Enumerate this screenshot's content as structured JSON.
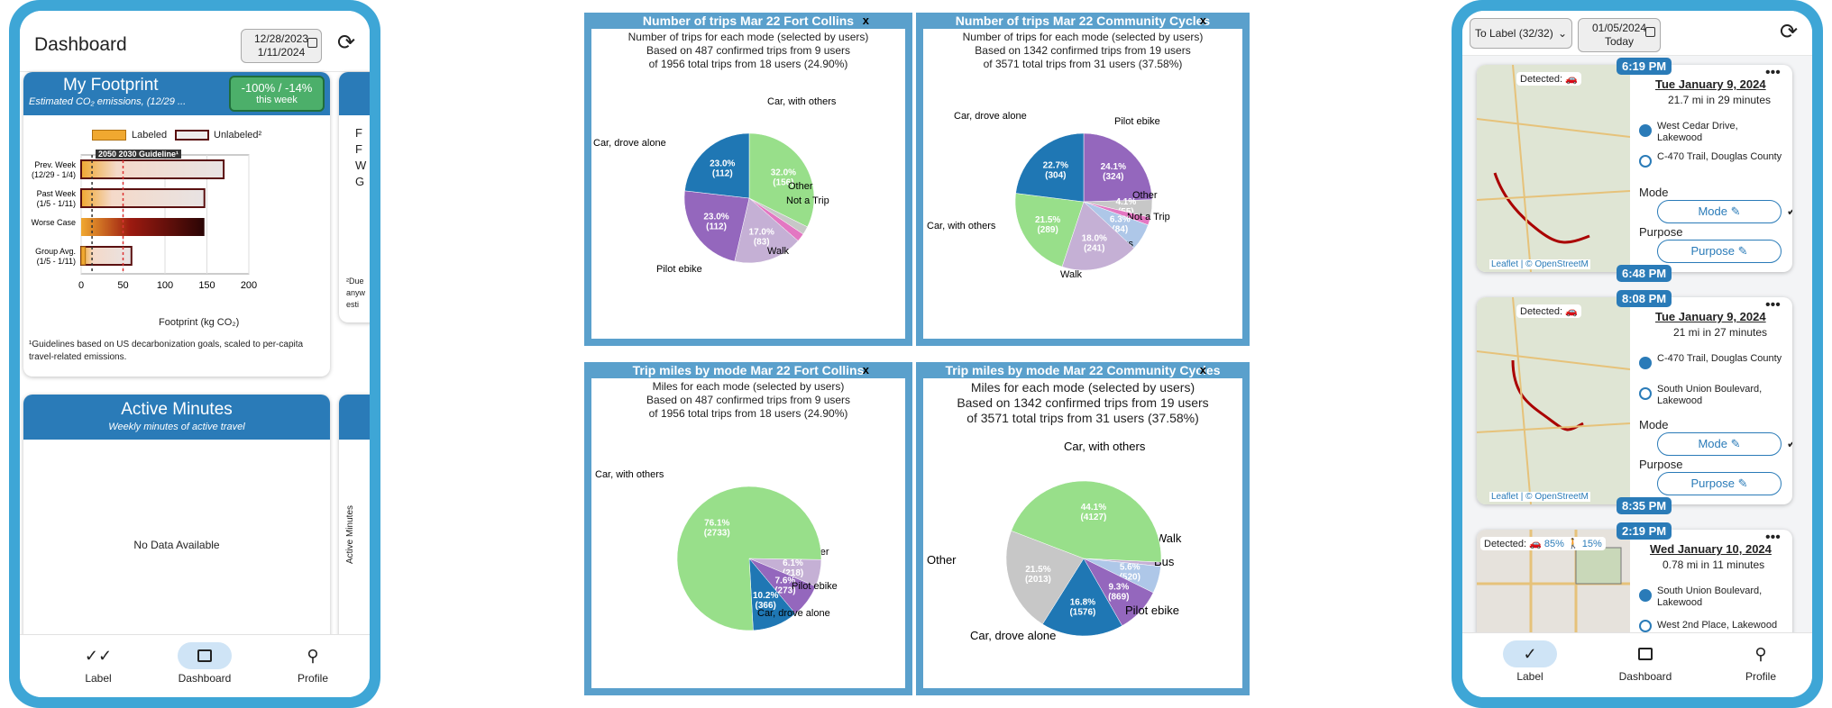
{
  "left_phone": {
    "header": {
      "title": "Dashboard",
      "date_start": "12/28/2023",
      "date_end": "1/11/2024"
    },
    "footprint": {
      "title": "My Footprint",
      "subtitle": "Estimated CO₂ emissions, (12/29 ...",
      "badge_value": "-100% / -14%",
      "badge_sub": "this week",
      "legend_labeled": "Labeled",
      "legend_unlabeled": "Unlabeled²",
      "guideline_label": "2050  2030 Guideline¹",
      "rows": [
        {
          "label1": "Prev. Week",
          "label2": "(12/29 - 1/4)",
          "labeled": 0,
          "unlabeled": 170
        },
        {
          "label1": "Past Week",
          "label2": "(1/5 - 1/11)",
          "labeled": 0,
          "unlabeled": 147
        },
        {
          "label1": "Worse Case",
          "label2": "",
          "labeled": 0,
          "unlabeled": 147
        },
        {
          "label1": "Group Avg.",
          "label2": "(1/5 - 1/11)",
          "labeled": 5,
          "unlabeled": 60
        }
      ],
      "x_ticks": [
        "0",
        "50",
        "100",
        "150",
        "200"
      ],
      "x_label": "Footprint (kg CO₂)",
      "footnote": "¹Guidelines based on US decarbonization goals, scaled to per-capita travel-related emissions.",
      "side_card_letters": [
        "F",
        "F",
        "W",
        "G"
      ],
      "side_card_note": "²Due anyw esti"
    },
    "active_minutes": {
      "title": "Active Minutes",
      "subtitle": "Weekly minutes of active travel",
      "empty": "No Data Available",
      "side_label": "Active Minutes"
    },
    "tabs": [
      {
        "label": "Label",
        "icon": "double-check-icon"
      },
      {
        "label": "Dashboard",
        "icon": "bar-chart-icon"
      },
      {
        "label": "Profile",
        "icon": "person-icon"
      }
    ]
  },
  "panels": [
    {
      "title": "Number of trips Mar 22 Fort Collins",
      "close": "x",
      "sub1": "Number of trips for each mode (selected by users)",
      "sub2": "Based on 487 confirmed trips from 9 users",
      "sub3": "of 1956 total trips from 18 users (24.90%)"
    },
    {
      "title": "Number of trips Mar 22 Community Cycles",
      "close": "x",
      "sub1": "Number of trips for each mode (selected by users)",
      "sub2": "Based on 1342 confirmed trips from 19 users",
      "sub3": "of 3571 total trips from 31 users (37.58%)"
    },
    {
      "title": "Trip miles by mode Mar 22 Fort Collins",
      "close": "x",
      "sub1": "Miles for each mode (selected by users)",
      "sub2": "Based on 487 confirmed trips from 9 users",
      "sub3": "of 1956 total trips from 18 users (24.90%)"
    },
    {
      "title": "Trip miles by mode Mar 22 Community Cycles",
      "close": "x",
      "sub1": "Miles for each mode (selected by users)",
      "sub2": "Based on 1342 confirmed trips from 19 users",
      "sub3": "of 3571 total trips from 31 users (37.58%)"
    }
  ],
  "chart_data": [
    {
      "type": "pie",
      "title": "Number of trips Mar 22 Fort Collins",
      "slices": [
        {
          "label": "Car, with others",
          "pct": "32.0%",
          "count": "(156)",
          "value": 156,
          "color": "#98df8a"
        },
        {
          "label": "Other",
          "pct": "",
          "count": "",
          "value": 10,
          "color": "#c7c7c7"
        },
        {
          "label": "Not a Trip",
          "pct": "",
          "count": "",
          "value": 10,
          "color": "#e377c2"
        },
        {
          "label": "Walk",
          "pct": "17.0%",
          "count": "(83)",
          "value": 83,
          "color": "#c5b0d5"
        },
        {
          "label": "Pilot ebike",
          "pct": "23.0%",
          "count": "(112)",
          "value": 112,
          "color": "#9467bd"
        },
        {
          "label": "Car, drove alone",
          "pct": "23.0%",
          "count": "(112)",
          "value": 112,
          "color": "#1f77b4"
        }
      ]
    },
    {
      "type": "pie",
      "title": "Number of trips Mar 22 Community Cycles",
      "slices": [
        {
          "label": "Pilot ebike",
          "pct": "24.1%",
          "count": "(324)",
          "value": 324,
          "color": "#9467bd"
        },
        {
          "label": "Other",
          "pct": "4.1%",
          "count": "(55)",
          "value": 55,
          "color": "#c7c7c7"
        },
        {
          "label": "Not a Trip",
          "pct": "",
          "count": "",
          "value": 24,
          "color": "#e377c2"
        },
        {
          "label": "Bus",
          "pct": "6.3%",
          "count": "(84)",
          "value": 84,
          "color": "#aec7e8"
        },
        {
          "label": "Walk",
          "pct": "18.0%",
          "count": "(241)",
          "value": 241,
          "color": "#c5b0d5"
        },
        {
          "label": "Car, with others",
          "pct": "21.5%",
          "count": "(289)",
          "value": 289,
          "color": "#98df8a"
        },
        {
          "label": "Car, drove alone",
          "pct": "22.7%",
          "count": "(304)",
          "value": 304,
          "color": "#1f77b4"
        }
      ]
    },
    {
      "type": "pie",
      "title": "Trip miles by mode Mar 22 Fort Collins",
      "slices": [
        {
          "label": "Other",
          "pct": "6.1%",
          "count": "(218)",
          "value": 218,
          "color": "#c5b0d5"
        },
        {
          "label": "Pilot ebike",
          "pct": "7.6%",
          "count": "(273)",
          "value": 273,
          "color": "#9467bd"
        },
        {
          "label": "Car, drove alone",
          "pct": "10.2%",
          "count": "(366)",
          "value": 366,
          "color": "#1f77b4"
        },
        {
          "label": "Car, with others",
          "pct": "76.1%",
          "count": "(2733)",
          "value": 2733,
          "color": "#98df8a"
        }
      ]
    },
    {
      "type": "pie",
      "title": "Trip miles by mode Mar 22 Community Cycles",
      "slices": [
        {
          "label": "Walk",
          "pct": "",
          "count": "",
          "value": 80,
          "color": "#c5b0d5"
        },
        {
          "label": "Bus",
          "pct": "5.6%",
          "count": "(520)",
          "value": 520,
          "color": "#aec7e8"
        },
        {
          "label": "Pilot ebike",
          "pct": "9.3%",
          "count": "(869)",
          "value": 869,
          "color": "#9467bd"
        },
        {
          "label": "Car, drove alone",
          "pct": "16.8%",
          "count": "(1576)",
          "value": 1576,
          "color": "#1f77b4"
        },
        {
          "label": "Other",
          "pct": "21.5%",
          "count": "(2013)",
          "value": 2013,
          "color": "#c7c7c7"
        },
        {
          "label": "Car, with others",
          "pct": "44.1%",
          "count": "(4127)",
          "value": 4127,
          "color": "#98df8a"
        }
      ]
    }
  ],
  "right_phone": {
    "header": {
      "filter": "To Label (32/32)",
      "date_start": "01/05/2024",
      "date_end": "Today"
    },
    "trips": [
      {
        "start_time": "6:19 PM",
        "end_time": "6:48 PM",
        "detected": "Detected:",
        "detected_extra": "",
        "date": "Tue January 9, 2024",
        "summary": "21.7 mi in 29 minutes",
        "from": "West Cedar Drive, Lakewood",
        "to": "C-470 Trail, Douglas County",
        "mode_label": "Mode",
        "mode_button": "Mode",
        "purpose_label": "Purpose",
        "purpose_button": "Purpose",
        "attribution": "Leaflet | © OpenStreetM"
      },
      {
        "start_time": "8:08 PM",
        "end_time": "8:35 PM",
        "detected": "Detected:",
        "detected_extra": "",
        "date": "Tue January 9, 2024",
        "summary": "21 mi in 27 minutes",
        "from": "C-470 Trail, Douglas County",
        "to": "South Union Boulevard, Lakewood",
        "mode_label": "Mode",
        "mode_button": "Mode",
        "purpose_label": "Purpose",
        "purpose_button": "Purpose",
        "attribution": "Leaflet | © OpenStreetM"
      },
      {
        "start_time": "2:19 PM",
        "detected": "Detected:",
        "detected_extra": "85%  🚶 15%",
        "date": "Wed January 10, 2024",
        "summary": "0.78 mi in 11 minutes",
        "from": "South Union Boulevard, Lakewood",
        "to": "West 2nd Place, Lakewood"
      }
    ],
    "tabs": [
      {
        "label": "Label",
        "icon": "check-icon"
      },
      {
        "label": "Dashboard",
        "icon": "bar-chart-icon"
      },
      {
        "label": "Profile",
        "icon": "person-icon"
      }
    ]
  },
  "colors": {
    "frame": "#3ea6d6",
    "header_blue": "#2a7bb8",
    "badge_green": "#4caf6a",
    "panel_blue": "#5aa0cc"
  }
}
